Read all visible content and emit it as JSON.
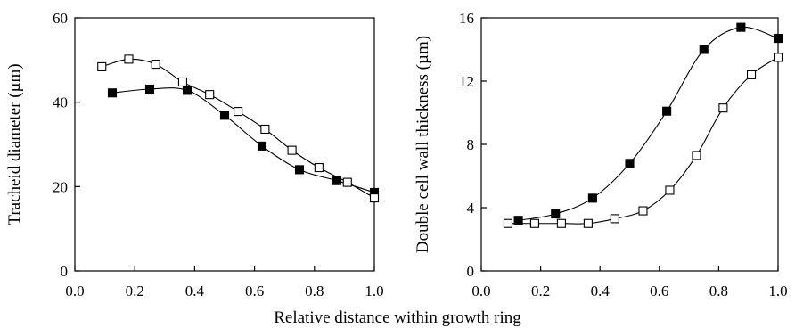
{
  "figure": {
    "shared_xlabel": "Relative distance within growth ring"
  },
  "chart_data": [
    {
      "type": "line",
      "title": "",
      "xlabel": "",
      "ylabel": "Tracheid diameter (µm)",
      "xlim": [
        0.0,
        1.0
      ],
      "ylim": [
        0,
        60
      ],
      "xticks": [
        "0.0",
        "0.2",
        "0.4",
        "0.6",
        "0.8",
        "1.0"
      ],
      "yticks": [
        "0",
        "20",
        "40",
        "60"
      ],
      "grid": false,
      "series": [
        {
          "marker": "filled-square",
          "color": "#000000",
          "x": [
            0.125,
            0.25,
            0.375,
            0.5,
            0.625,
            0.75,
            0.875,
            1.0
          ],
          "y": [
            42.2,
            43.1,
            42.8,
            36.9,
            29.6,
            24.0,
            21.4,
            18.6
          ]
        },
        {
          "marker": "open-square",
          "color": "#000000",
          "x": [
            0.09,
            0.18,
            0.27,
            0.36,
            0.45,
            0.545,
            0.635,
            0.725,
            0.815,
            0.91,
            1.0
          ],
          "y": [
            48.4,
            50.2,
            49.0,
            44.8,
            41.8,
            37.8,
            33.6,
            28.6,
            24.5,
            21.0,
            17.3
          ]
        }
      ]
    },
    {
      "type": "line",
      "title": "",
      "xlabel": "",
      "ylabel": "Double cell wall thickness (µm)",
      "xlim": [
        0.0,
        1.0
      ],
      "ylim": [
        0,
        16
      ],
      "xticks": [
        "0.0",
        "0.2",
        "0.4",
        "0.6",
        "0.8",
        "1.0"
      ],
      "yticks": [
        "0",
        "4",
        "8",
        "12",
        "16"
      ],
      "grid": false,
      "series": [
        {
          "marker": "filled-square",
          "color": "#000000",
          "x": [
            0.125,
            0.25,
            0.375,
            0.5,
            0.625,
            0.75,
            0.875,
            1.0
          ],
          "y": [
            3.2,
            3.6,
            4.6,
            6.8,
            10.1,
            14.0,
            15.4,
            14.7
          ]
        },
        {
          "marker": "open-square",
          "color": "#000000",
          "x": [
            0.09,
            0.18,
            0.27,
            0.36,
            0.45,
            0.545,
            0.635,
            0.725,
            0.815,
            0.91,
            1.0
          ],
          "y": [
            3.0,
            3.0,
            3.0,
            3.0,
            3.3,
            3.8,
            5.1,
            7.3,
            10.3,
            12.4,
            13.5
          ]
        }
      ]
    }
  ]
}
